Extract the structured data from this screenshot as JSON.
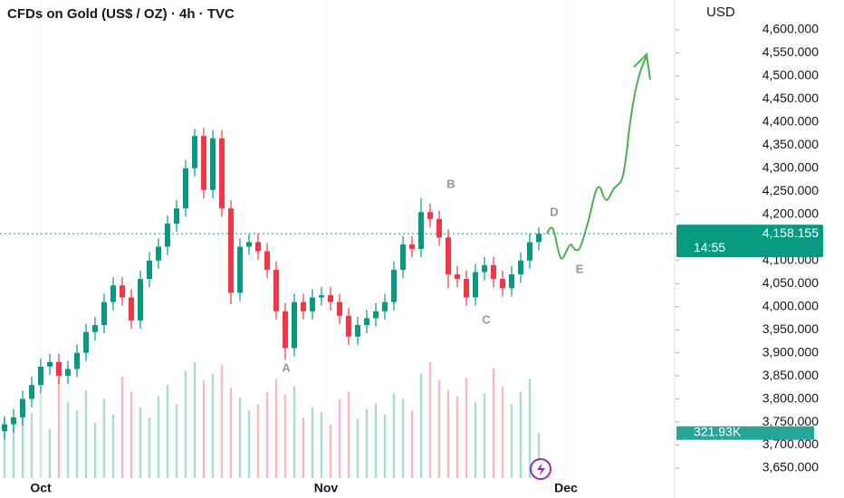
{
  "chart_data": {
    "type": "candlestick",
    "title": "CFDs on Gold (US$ / OZ) · 4h · TVC",
    "y_axis_label": "USD",
    "up_color": "#089981",
    "down_color": "#f23645",
    "open": [
      3730,
      3745,
      3760,
      3800,
      3830,
      3870,
      3880,
      3850,
      3865,
      3900,
      3945,
      3960,
      4010,
      4046,
      4020,
      3970,
      4060,
      4100,
      4130,
      4180,
      4213,
      4300,
      4370,
      4253,
      4365,
      4213,
      4030,
      4130,
      4140,
      4120,
      4080,
      3990,
      3910,
      4010,
      3990,
      4020,
      4025,
      4010,
      3980,
      3935,
      3960,
      3975,
      3990,
      4010,
      4080,
      4135,
      4125,
      4205,
      4190,
      4150,
      4070,
      4060,
      4020,
      4075,
      4090,
      4060,
      4040,
      4070,
      4100,
      4140
    ],
    "high": [
      3763,
      3778,
      3818,
      3848,
      3888,
      3898,
      3898,
      3883,
      3918,
      3963,
      3978,
      4028,
      4064,
      4064,
      4038,
      4078,
      4118,
      4148,
      4198,
      4231,
      4318,
      4385,
      4388,
      4383,
      4383,
      4231,
      4148,
      4158,
      4158,
      4138,
      4098,
      4008,
      4028,
      4028,
      4038,
      4043,
      4043,
      4028,
      3998,
      3978,
      3993,
      4008,
      4028,
      4098,
      4153,
      4153,
      4235,
      4223,
      4208,
      4168,
      4088,
      4078,
      4093,
      4108,
      4108,
      4078,
      4088,
      4118,
      4158,
      4172
    ],
    "low": [
      3712,
      3727,
      3742,
      3782,
      3812,
      3852,
      3832,
      3832,
      3847,
      3882,
      3927,
      3942,
      3992,
      4002,
      3952,
      3952,
      4042,
      4082,
      4112,
      4162,
      4195,
      4282,
      4235,
      4235,
      4195,
      4005,
      4012,
      4112,
      4102,
      4062,
      3972,
      3885,
      3892,
      3972,
      3972,
      4002,
      3992,
      3962,
      3917,
      3917,
      3942,
      3957,
      3972,
      3992,
      4062,
      4107,
      4107,
      4172,
      4132,
      4040,
      4042,
      4002,
      4002,
      4057,
      4042,
      4022,
      4022,
      4052,
      4082,
      4122
    ],
    "close": [
      3745,
      3760,
      3800,
      3830,
      3870,
      3880,
      3850,
      3865,
      3900,
      3945,
      3960,
      4010,
      4046,
      4020,
      3970,
      4060,
      4100,
      4130,
      4180,
      4213,
      4300,
      4370,
      4253,
      4365,
      4213,
      4030,
      4130,
      4140,
      4120,
      4080,
      3990,
      3910,
      4010,
      3990,
      4020,
      4025,
      4010,
      3980,
      3935,
      3960,
      3975,
      3990,
      4010,
      4080,
      4135,
      4125,
      4205,
      4190,
      4150,
      4070,
      4060,
      4020,
      4075,
      4090,
      4060,
      4040,
      4070,
      4100,
      4140,
      4158
    ],
    "volume": {
      "values": [
        420,
        380,
        510,
        460,
        600,
        350,
        700,
        540,
        480,
        620,
        390,
        560,
        450,
        720,
        610,
        500,
        430,
        580,
        660,
        520,
        760,
        820,
        690,
        740,
        800,
        640,
        570,
        480,
        520,
        610,
        700,
        590,
        650,
        430,
        500,
        470,
        380,
        560,
        610,
        420,
        490,
        530,
        450,
        600,
        560,
        480,
        740,
        820,
        690,
        620,
        580,
        710,
        540,
        600,
        780,
        650,
        520,
        610,
        700,
        321.93
      ],
      "last_label": "321.93K"
    },
    "vlim": [
      0,
      1000
    ],
    "last_price": {
      "value": 4158.155,
      "label": "4,158.155"
    },
    "countdown": "14:55",
    "wave_labels": [
      "A",
      "B",
      "C",
      "D",
      "E"
    ],
    "xlim": [
      -0.5,
      74
    ],
    "xticks": [
      {
        "value": 4,
        "label": "Oct"
      },
      {
        "value": 35.5,
        "label": "Nov"
      },
      {
        "value": 62,
        "label": "Dec"
      }
    ],
    "ylim": [
      3650,
      4600
    ],
    "yticks": [
      {
        "value": 3650,
        "label": "3,650.000"
      },
      {
        "value": 3700,
        "label": "3,700.000"
      },
      {
        "value": 3750,
        "label": "3,750.000"
      },
      {
        "value": 3800,
        "label": "3,800.000"
      },
      {
        "value": 3850,
        "label": "3,850.000"
      },
      {
        "value": 3900,
        "label": "3,900.000"
      },
      {
        "value": 3950,
        "label": "3,950.000"
      },
      {
        "value": 4000,
        "label": "4,000.000"
      },
      {
        "value": 4050,
        "label": "4,050.000"
      },
      {
        "value": 4100,
        "label": "4,100.000"
      },
      {
        "value": 4150,
        "label": "4,150.000"
      },
      {
        "value": 4200,
        "label": "4,200.000"
      },
      {
        "value": 4250,
        "label": "4,250.000"
      },
      {
        "value": 4300,
        "label": "4,300.000"
      },
      {
        "value": 4350,
        "label": "4,350.000"
      },
      {
        "value": 4400,
        "label": "4,400.000"
      },
      {
        "value": 4450,
        "label": "4,450.000"
      },
      {
        "value": 4500,
        "label": "4,500.000"
      },
      {
        "value": 4550,
        "label": "4,550.000"
      },
      {
        "value": 4600,
        "label": "4,600.000"
      }
    ]
  }
}
